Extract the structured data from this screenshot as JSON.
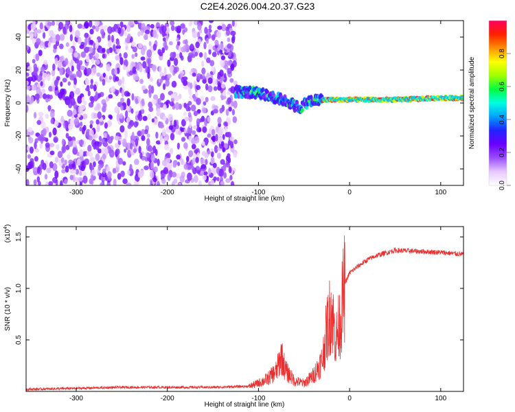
{
  "title": "C2E4.2026.004.20.37.G23",
  "chart_data": [
    {
      "type": "heatmap",
      "xlabel": "Height of straight line (km)",
      "ylabel": "Frequency (Hz)",
      "xlim": [
        -355,
        125
      ],
      "ylim": [
        -50,
        50
      ],
      "xticks": [
        -300,
        -200,
        -100,
        0,
        100
      ],
      "yticks": [
        -40,
        -20,
        0,
        20,
        40
      ],
      "colorbar": {
        "label": "Normalized spectral amplitude",
        "range": [
          0,
          1
        ],
        "ticks": [
          "0.0",
          "0.2",
          "0.4",
          "0.6",
          "0.8"
        ],
        "colors": [
          "#ffffff",
          "#e6c8ff",
          "#9a4dff",
          "#6a00ff",
          "#2222ff",
          "#00a0ff",
          "#00ffe0",
          "#00ff40",
          "#a0ff00",
          "#ffff00",
          "#ff9000",
          "#ff2000",
          "#ff0060"
        ]
      },
      "description_points": {
        "noise_region_x": [
          -355,
          -125
        ],
        "signal_track": [
          [
            -125,
            7
          ],
          [
            -100,
            6
          ],
          [
            -80,
            3
          ],
          [
            -65,
            0
          ],
          [
            -55,
            -3
          ],
          [
            -45,
            1
          ],
          [
            -30,
            2
          ],
          [
            0,
            2
          ],
          [
            50,
            2
          ],
          [
            100,
            3
          ],
          [
            125,
            3
          ]
        ]
      }
    },
    {
      "type": "line",
      "xlabel": "Height of straight line (km)",
      "ylabel": "SNR (10 * v/v)",
      "multiplier": "(x10",
      "multiplier_exp": "4",
      "multiplier_close": ")",
      "xlim": [
        -355,
        125
      ],
      "ylim": [
        0,
        1.6
      ],
      "xticks": [
        -300,
        -200,
        -100,
        0,
        100
      ],
      "yticks": [
        0.5,
        1.0,
        1.5
      ],
      "ytick_labels": [
        "0.5",
        "1.0",
        "1.5"
      ],
      "color": "#e83030",
      "series": [
        {
          "name": "SNR",
          "x": [
            -355,
            -300,
            -250,
            -200,
            -150,
            -110,
            -100,
            -90,
            -80,
            -75,
            -70,
            -60,
            -50,
            -40,
            -30,
            -25,
            -20,
            -15,
            -10,
            -5,
            0,
            10,
            20,
            30,
            50,
            75,
            100,
            125
          ],
          "values": [
            0.02,
            0.03,
            0.04,
            0.04,
            0.04,
            0.05,
            0.08,
            0.12,
            0.2,
            0.35,
            0.2,
            0.1,
            0.08,
            0.15,
            0.3,
            0.6,
            0.8,
            0.5,
            0.7,
            1.05,
            1.15,
            1.22,
            1.28,
            1.32,
            1.37,
            1.36,
            1.35,
            1.33
          ]
        }
      ]
    }
  ]
}
